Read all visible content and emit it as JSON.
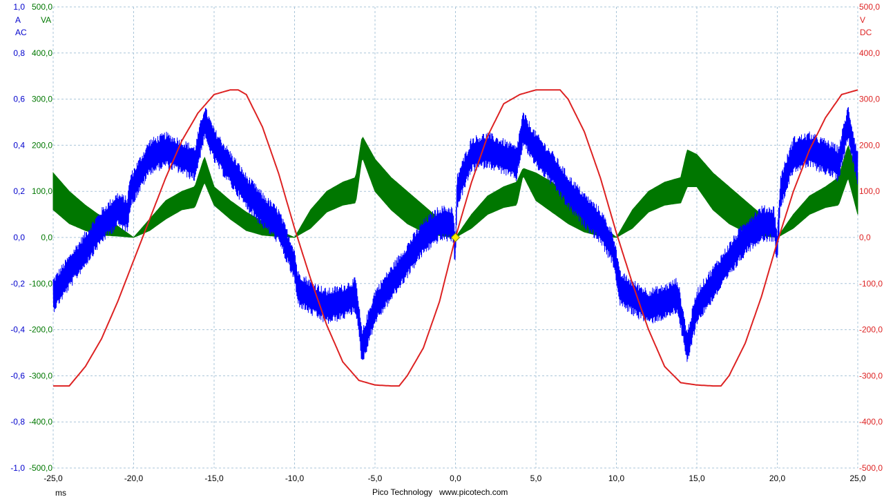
{
  "footer": {
    "brand": "Pico Technology",
    "url": "www.picotech.com"
  },
  "axes": {
    "x_unit": "ms",
    "left_current": {
      "unit": "A",
      "coupling": "AC",
      "color": "#0000cc",
      "ticks": [
        "1,0",
        "0,8",
        "0,6",
        "0,4",
        "0,2",
        "0,0",
        "-0,2",
        "-0,4",
        "-0,6",
        "-0,8",
        "-1,0"
      ]
    },
    "left_power": {
      "unit": "VA",
      "color": "#007700",
      "ticks": [
        "500,0",
        "400,0",
        "300,0",
        "200,0",
        "100,0",
        "0,0",
        "-100,0",
        "-200,0",
        "-300,0",
        "-400,0",
        "-500,0"
      ]
    },
    "right_voltage": {
      "unit": "V",
      "coupling": "DC",
      "color": "#dd2222",
      "ticks": [
        "500,0",
        "400,0",
        "300,0",
        "200,0",
        "100,0",
        "0,0",
        "-100,0",
        "-200,0",
        "-300,0",
        "-400,0",
        "-500,0"
      ]
    },
    "x_ticks": [
      "-25,0",
      "-20,0",
      "-15,0",
      "-10,0",
      "-5,0",
      "0,0",
      "5,0",
      "10,0",
      "15,0",
      "20,0",
      "25,0"
    ]
  },
  "chart_data": {
    "type": "line",
    "x_unit": "ms",
    "xlim": [
      -25,
      25
    ],
    "grid": true,
    "trigger_marker": {
      "x": 0,
      "y_volts": 0,
      "color": "#ffee00"
    },
    "series": [
      {
        "name": "V",
        "color": "#dd2222",
        "axis": "right",
        "ylim": [
          -500,
          500
        ],
        "x": [
          -25,
          -24,
          -23,
          -22,
          -21,
          -20,
          -19,
          -18,
          -17,
          -16,
          -15,
          -14,
          -13.5,
          -13,
          -12,
          -11,
          -10,
          -9,
          -8,
          -7,
          -6,
          -5,
          -4,
          -3.5,
          -3,
          -2,
          -1,
          0,
          1,
          2,
          3,
          4,
          5,
          6,
          6.5,
          7,
          8,
          9,
          10,
          11,
          12,
          13,
          14,
          15,
          16,
          16.5,
          17,
          18,
          19,
          20,
          21,
          22,
          23,
          24,
          25
        ],
        "y": [
          -322,
          -322,
          -280,
          -220,
          -140,
          -50,
          40,
          130,
          210,
          270,
          310,
          320,
          320,
          310,
          240,
          140,
          20,
          -90,
          -190,
          -270,
          -310,
          -320,
          -322,
          -322,
          -300,
          -240,
          -140,
          0,
          120,
          220,
          290,
          310,
          320,
          320,
          320,
          300,
          230,
          130,
          10,
          -100,
          -200,
          -280,
          -315,
          -320,
          -322,
          -322,
          -300,
          -230,
          -130,
          -10,
          100,
          190,
          260,
          310,
          320
        ]
      },
      {
        "name": "A",
        "color": "#0000ff",
        "axis": "left",
        "ylim": [
          -1,
          1
        ],
        "noise_amplitude": 0.08,
        "x": [
          -25,
          -24,
          -23,
          -22,
          -21,
          -20.4,
          -20.2,
          -19,
          -18,
          -17,
          -16.2,
          -15.6,
          -15,
          -14,
          -13,
          -12,
          -11,
          -10.4,
          -10,
          -9.8,
          -9,
          -8,
          -7,
          -6.2,
          -5.8,
          -5,
          -4,
          -3,
          -2,
          -1,
          -0.2,
          0,
          0.1,
          1,
          2,
          3,
          3.8,
          4.2,
          5,
          6,
          7,
          8,
          9,
          9.8,
          10,
          10.2,
          11,
          12,
          13,
          13.8,
          14.4,
          15,
          16,
          17,
          18,
          19,
          19.8,
          20,
          20.2,
          21,
          22,
          23,
          23.8,
          24.4,
          25
        ],
        "y": [
          -0.25,
          -0.15,
          -0.05,
          0.05,
          0.12,
          0.1,
          0.2,
          0.35,
          0.38,
          0.35,
          0.32,
          0.5,
          0.4,
          0.3,
          0.2,
          0.12,
          0.05,
          -0.05,
          -0.12,
          -0.22,
          -0.26,
          -0.3,
          -0.28,
          -0.25,
          -0.48,
          -0.3,
          -0.2,
          -0.1,
          0.0,
          0.06,
          0.06,
          -0.05,
          0.2,
          0.36,
          0.38,
          0.35,
          0.32,
          0.47,
          0.38,
          0.3,
          0.2,
          0.12,
          0.05,
          -0.05,
          -0.12,
          -0.22,
          -0.26,
          -0.3,
          -0.28,
          -0.25,
          -0.48,
          -0.3,
          -0.2,
          -0.1,
          0.0,
          0.06,
          0.06,
          -0.05,
          0.2,
          0.36,
          0.38,
          0.35,
          0.32,
          0.5,
          0.3
        ]
      },
      {
        "name": "VA",
        "color": "#007700",
        "axis": "left",
        "ylim": [
          -500,
          500
        ],
        "band": true,
        "x": [
          -25,
          -24,
          -23,
          -22,
          -21,
          -20,
          -19,
          -18,
          -17,
          -16.2,
          -15.6,
          -15,
          -14,
          -13,
          -12,
          -11,
          -10,
          -9,
          -8,
          -7,
          -6.2,
          -5.8,
          -5,
          -4,
          -3,
          -2,
          -1,
          0,
          1,
          2,
          3,
          3.8,
          4.2,
          5,
          6,
          7,
          8,
          9,
          10,
          11,
          12,
          13,
          14,
          14.4,
          15,
          16,
          17,
          18,
          19,
          20,
          21,
          22,
          23,
          23.8,
          24.4,
          25
        ],
        "lower": [
          60,
          30,
          15,
          5,
          3,
          0,
          15,
          40,
          60,
          65,
          120,
          70,
          40,
          15,
          5,
          2,
          0,
          20,
          55,
          70,
          75,
          175,
          100,
          60,
          30,
          12,
          4,
          0,
          20,
          50,
          65,
          70,
          135,
          80,
          55,
          30,
          12,
          3,
          0,
          20,
          55,
          70,
          75,
          110,
          110,
          60,
          30,
          12,
          4,
          0,
          20,
          50,
          65,
          70,
          130,
          50
        ],
        "upper": [
          140,
          100,
          70,
          45,
          25,
          0,
          40,
          80,
          100,
          110,
          175,
          110,
          80,
          55,
          35,
          15,
          0,
          60,
          100,
          120,
          130,
          220,
          170,
          130,
          100,
          70,
          40,
          0,
          50,
          90,
          110,
          120,
          150,
          140,
          120,
          90,
          60,
          30,
          0,
          60,
          100,
          120,
          130,
          190,
          180,
          140,
          110,
          80,
          50,
          0,
          50,
          90,
          110,
          130,
          200,
          140
        ]
      }
    ]
  }
}
